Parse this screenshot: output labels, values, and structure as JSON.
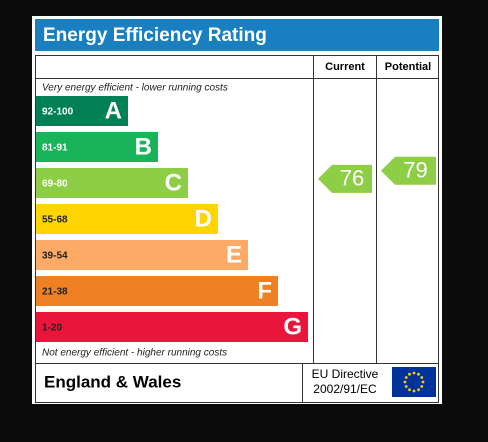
{
  "title": "Energy Efficiency Rating",
  "columns": {
    "current": "Current",
    "potential": "Potential"
  },
  "top_note": "Very energy efficient - lower running costs",
  "bottom_note": "Not energy efficient - higher running costs",
  "bands": [
    {
      "range": "92-100",
      "letter": "A",
      "color": "#008054"
    },
    {
      "range": "81-91",
      "letter": "B",
      "color": "#19b459"
    },
    {
      "range": "69-80",
      "letter": "C",
      "color": "#8dce46"
    },
    {
      "range": "55-68",
      "letter": "D",
      "color": "#ffd500"
    },
    {
      "range": "39-54",
      "letter": "E",
      "color": "#fcaa65"
    },
    {
      "range": "21-38",
      "letter": "F",
      "color": "#ef8023"
    },
    {
      "range": "1-20",
      "letter": "G",
      "color": "#e9153b"
    }
  ],
  "ratings": {
    "current": 76,
    "potential": 79
  },
  "footer": {
    "region": "England & Wales",
    "directive_line1": "EU Directive",
    "directive_line2": "2002/91/EC"
  }
}
